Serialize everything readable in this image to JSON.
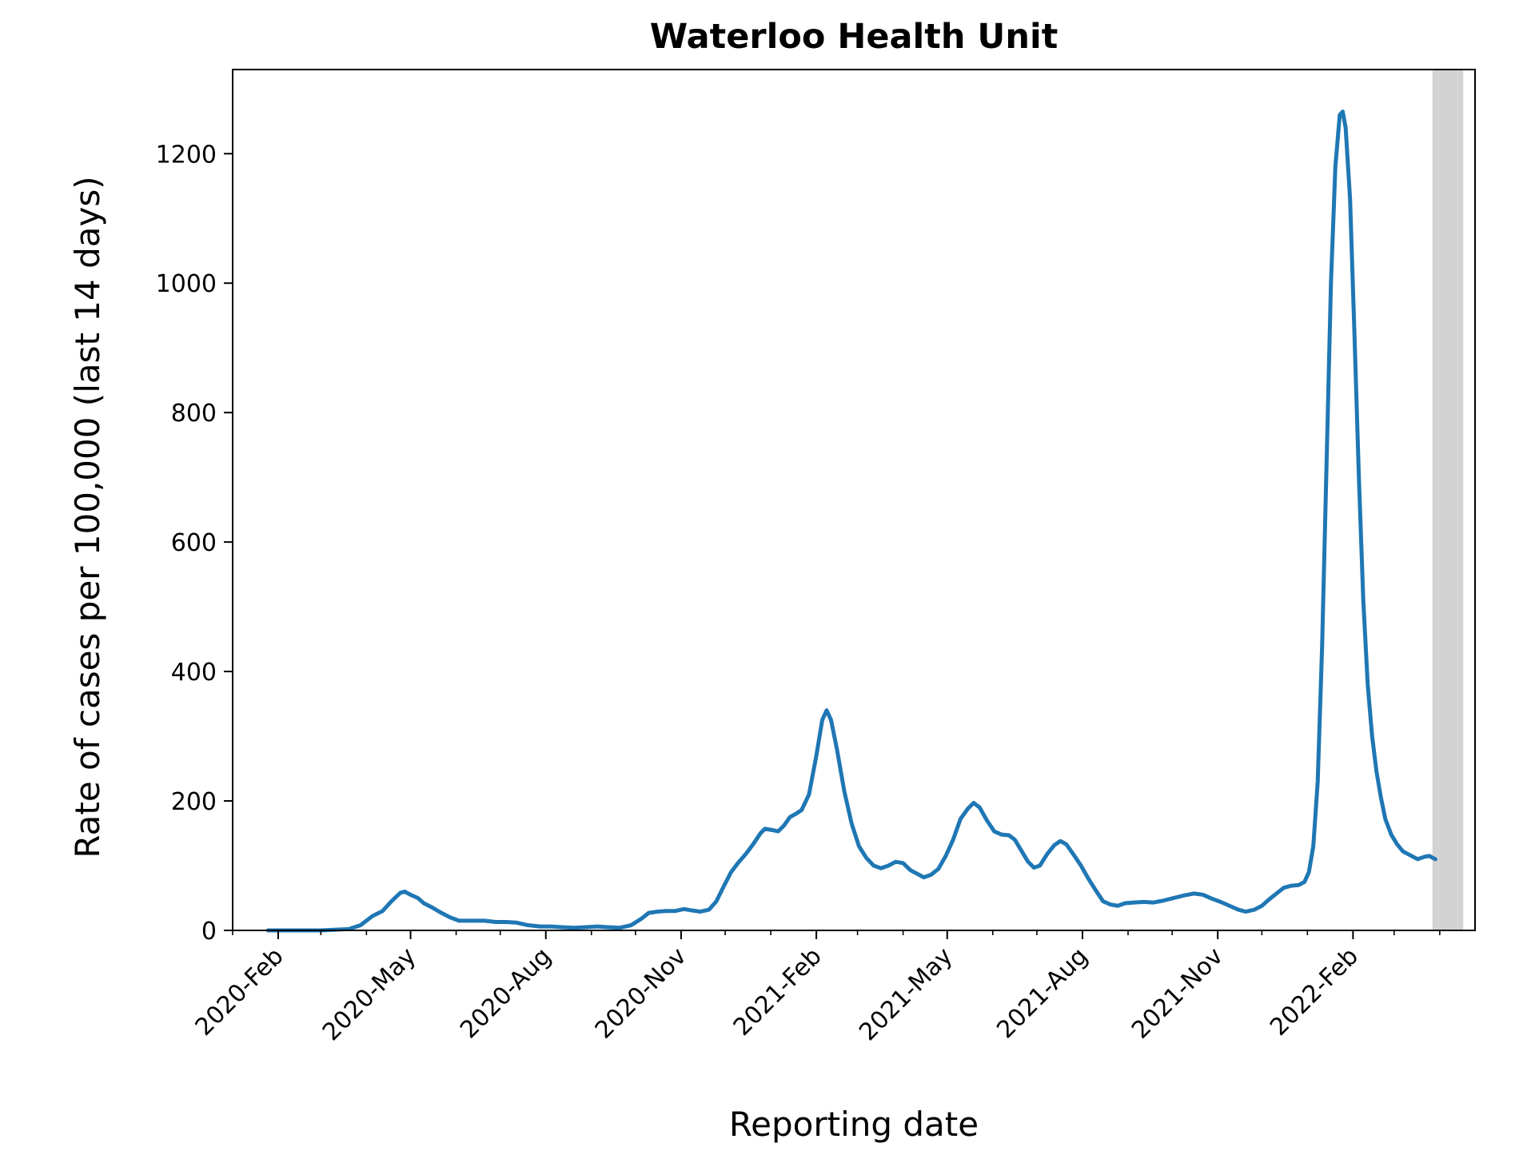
{
  "chart_data": {
    "type": "line",
    "title": "Waterloo Health Unit",
    "xlabel": "Reporting date",
    "ylabel": "Rate of cases per 100,000 (last 14 days)",
    "xlim": [
      "2020-01-01",
      "2022-04-25"
    ],
    "ylim": [
      0,
      1330
    ],
    "yticks": [
      0,
      200,
      400,
      600,
      800,
      1000,
      1200
    ],
    "xticks": [
      {
        "date": "2020-02-01",
        "label": "2020-Feb"
      },
      {
        "date": "2020-05-01",
        "label": "2020-May"
      },
      {
        "date": "2020-08-01",
        "label": "2020-Aug"
      },
      {
        "date": "2020-11-01",
        "label": "2020-Nov"
      },
      {
        "date": "2021-02-01",
        "label": "2021-Feb"
      },
      {
        "date": "2021-05-01",
        "label": "2021-May"
      },
      {
        "date": "2021-08-01",
        "label": "2021-Aug"
      },
      {
        "date": "2021-11-01",
        "label": "2021-Nov"
      },
      {
        "date": "2022-02-01",
        "label": "2022-Feb"
      }
    ],
    "minor_ticks_per_major": 2,
    "shaded_region": {
      "start": "2022-03-27",
      "end": "2022-04-17",
      "color": "#d3d3d3"
    },
    "line_color": "#1f77b4",
    "grid": false,
    "series": [
      {
        "name": "",
        "points": [
          [
            "2020-01-25",
            0
          ],
          [
            "2020-02-15",
            0
          ],
          [
            "2020-03-01",
            0
          ],
          [
            "2020-03-20",
            2
          ],
          [
            "2020-03-28",
            8
          ],
          [
            "2020-04-05",
            22
          ],
          [
            "2020-04-12",
            30
          ],
          [
            "2020-04-18",
            45
          ],
          [
            "2020-04-24",
            58
          ],
          [
            "2020-04-27",
            60
          ],
          [
            "2020-05-01",
            55
          ],
          [
            "2020-05-06",
            50
          ],
          [
            "2020-05-10",
            42
          ],
          [
            "2020-05-16",
            35
          ],
          [
            "2020-05-22",
            27
          ],
          [
            "2020-05-28",
            20
          ],
          [
            "2020-06-03",
            15
          ],
          [
            "2020-06-12",
            15
          ],
          [
            "2020-06-20",
            15
          ],
          [
            "2020-06-28",
            13
          ],
          [
            "2020-07-05",
            13
          ],
          [
            "2020-07-12",
            12
          ],
          [
            "2020-07-20",
            8
          ],
          [
            "2020-07-28",
            6
          ],
          [
            "2020-08-05",
            6
          ],
          [
            "2020-08-12",
            5
          ],
          [
            "2020-08-20",
            4
          ],
          [
            "2020-08-28",
            5
          ],
          [
            "2020-09-05",
            6
          ],
          [
            "2020-09-12",
            5
          ],
          [
            "2020-09-20",
            4
          ],
          [
            "2020-09-28",
            8
          ],
          [
            "2020-10-05",
            18
          ],
          [
            "2020-10-10",
            27
          ],
          [
            "2020-10-16",
            29
          ],
          [
            "2020-10-22",
            30
          ],
          [
            "2020-10-28",
            30
          ],
          [
            "2020-11-03",
            33
          ],
          [
            "2020-11-08",
            31
          ],
          [
            "2020-11-14",
            29
          ],
          [
            "2020-11-20",
            32
          ],
          [
            "2020-11-25",
            45
          ],
          [
            "2020-11-30",
            68
          ],
          [
            "2020-12-05",
            90
          ],
          [
            "2020-12-10",
            105
          ],
          [
            "2020-12-15",
            118
          ],
          [
            "2020-12-20",
            133
          ],
          [
            "2020-12-25",
            150
          ],
          [
            "2020-12-28",
            157
          ],
          [
            "2021-01-02",
            155
          ],
          [
            "2021-01-06",
            153
          ],
          [
            "2021-01-10",
            162
          ],
          [
            "2021-01-14",
            175
          ],
          [
            "2021-01-18",
            180
          ],
          [
            "2021-01-22",
            186
          ],
          [
            "2021-01-27",
            210
          ],
          [
            "2021-02-01",
            270
          ],
          [
            "2021-02-05",
            325
          ],
          [
            "2021-02-08",
            340
          ],
          [
            "2021-02-11",
            325
          ],
          [
            "2021-02-15",
            280
          ],
          [
            "2021-02-20",
            215
          ],
          [
            "2021-02-25",
            165
          ],
          [
            "2021-03-02",
            130
          ],
          [
            "2021-03-07",
            112
          ],
          [
            "2021-03-12",
            100
          ],
          [
            "2021-03-17",
            96
          ],
          [
            "2021-03-22",
            100
          ],
          [
            "2021-03-27",
            106
          ],
          [
            "2021-04-01",
            104
          ],
          [
            "2021-04-06",
            93
          ],
          [
            "2021-04-11",
            87
          ],
          [
            "2021-04-15",
            82
          ],
          [
            "2021-04-20",
            86
          ],
          [
            "2021-04-25",
            95
          ],
          [
            "2021-04-30",
            115
          ],
          [
            "2021-05-05",
            140
          ],
          [
            "2021-05-10",
            172
          ],
          [
            "2021-05-15",
            188
          ],
          [
            "2021-05-19",
            197
          ],
          [
            "2021-05-23",
            190
          ],
          [
            "2021-05-28",
            170
          ],
          [
            "2021-06-02",
            153
          ],
          [
            "2021-06-07",
            148
          ],
          [
            "2021-06-12",
            147
          ],
          [
            "2021-06-16",
            140
          ],
          [
            "2021-06-20",
            125
          ],
          [
            "2021-06-25",
            106
          ],
          [
            "2021-06-29",
            97
          ],
          [
            "2021-07-03",
            100
          ],
          [
            "2021-07-08",
            118
          ],
          [
            "2021-07-13",
            132
          ],
          [
            "2021-07-17",
            138
          ],
          [
            "2021-07-21",
            133
          ],
          [
            "2021-07-26",
            117
          ],
          [
            "2021-07-31",
            100
          ],
          [
            "2021-08-05",
            80
          ],
          [
            "2021-08-10",
            62
          ],
          [
            "2021-08-15",
            45
          ],
          [
            "2021-08-20",
            40
          ],
          [
            "2021-08-25",
            38
          ],
          [
            "2021-08-30",
            42
          ],
          [
            "2021-09-05",
            43
          ],
          [
            "2021-09-12",
            44
          ],
          [
            "2021-09-18",
            43
          ],
          [
            "2021-09-25",
            46
          ],
          [
            "2021-10-02",
            50
          ],
          [
            "2021-10-09",
            54
          ],
          [
            "2021-10-16",
            57
          ],
          [
            "2021-10-22",
            55
          ],
          [
            "2021-10-28",
            49
          ],
          [
            "2021-11-03",
            44
          ],
          [
            "2021-11-09",
            38
          ],
          [
            "2021-11-15",
            32
          ],
          [
            "2021-11-20",
            29
          ],
          [
            "2021-11-26",
            32
          ],
          [
            "2021-12-01",
            38
          ],
          [
            "2021-12-06",
            48
          ],
          [
            "2021-12-11",
            57
          ],
          [
            "2021-12-16",
            66
          ],
          [
            "2021-12-21",
            69
          ],
          [
            "2021-12-26",
            70
          ],
          [
            "2021-12-30",
            75
          ],
          [
            "2022-01-02",
            90
          ],
          [
            "2022-01-05",
            130
          ],
          [
            "2022-01-08",
            230
          ],
          [
            "2022-01-11",
            440
          ],
          [
            "2022-01-14",
            720
          ],
          [
            "2022-01-17",
            1000
          ],
          [
            "2022-01-20",
            1180
          ],
          [
            "2022-01-23",
            1260
          ],
          [
            "2022-01-25",
            1265
          ],
          [
            "2022-01-27",
            1240
          ],
          [
            "2022-01-30",
            1130
          ],
          [
            "2022-02-02",
            920
          ],
          [
            "2022-02-05",
            700
          ],
          [
            "2022-02-08",
            510
          ],
          [
            "2022-02-11",
            380
          ],
          [
            "2022-02-14",
            300
          ],
          [
            "2022-02-17",
            245
          ],
          [
            "2022-02-20",
            205
          ],
          [
            "2022-02-23",
            172
          ],
          [
            "2022-02-27",
            148
          ],
          [
            "2022-03-03",
            133
          ],
          [
            "2022-03-07",
            122
          ],
          [
            "2022-03-12",
            116
          ],
          [
            "2022-03-17",
            110
          ],
          [
            "2022-03-22",
            114
          ],
          [
            "2022-03-25",
            115
          ],
          [
            "2022-03-29",
            110
          ]
        ]
      }
    ]
  }
}
